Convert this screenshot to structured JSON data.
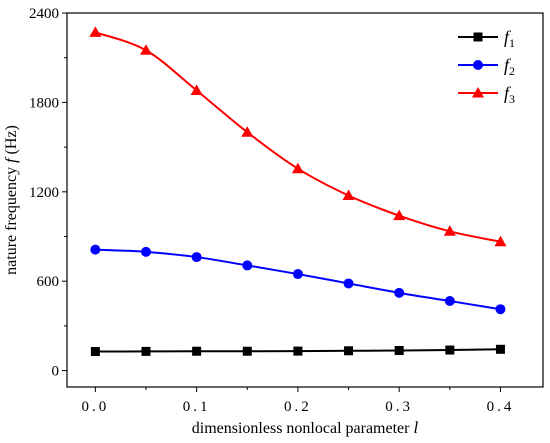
{
  "chart_data": {
    "type": "line",
    "xlabel": "dimensionless nonlocal parameter",
    "xlabel_symbol": "l",
    "ylabel": "nature frequency",
    "ylabel_symbol": "f",
    "ylabel_unit": "(Hz)",
    "xlim": [
      -0.028,
      0.442
    ],
    "ylim": [
      -110,
      2400
    ],
    "x_ticks": [
      0.0,
      0.1,
      0.2,
      0.3,
      0.4
    ],
    "x_tick_labels": [
      "0.0",
      "0.1",
      "0.2",
      "0.3",
      "0.4"
    ],
    "y_ticks": [
      0,
      600,
      1200,
      1800,
      2400
    ],
    "y_tick_labels": [
      "0",
      "600",
      "1200",
      "1800",
      "2400"
    ],
    "legend_position": "top-right",
    "grid": false,
    "x": [
      0.0,
      0.05,
      0.1,
      0.15,
      0.2,
      0.25,
      0.3,
      0.35,
      0.4
    ],
    "series": [
      {
        "name": "f",
        "name_sub": "1",
        "color": "#000000",
        "marker": "square",
        "values": [
          128,
          129,
          130,
          130,
          131,
          133,
          135,
          138,
          143
        ]
      },
      {
        "name": "f",
        "name_sub": "2",
        "color": "#0000ff",
        "marker": "circle",
        "values": [
          812,
          797,
          762,
          706,
          648,
          585,
          522,
          467,
          412
        ]
      },
      {
        "name": "f",
        "name_sub": "3",
        "color": "#ff0000",
        "marker": "triangle",
        "values": [
          2270,
          2150,
          1880,
          1600,
          1355,
          1175,
          1040,
          935,
          865
        ]
      }
    ]
  }
}
